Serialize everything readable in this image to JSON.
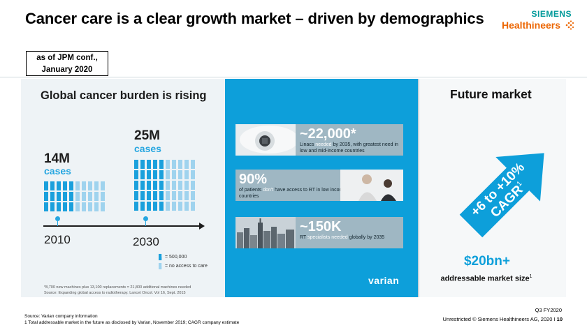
{
  "header": {
    "title": "Cancer care is a clear growth market – driven by demographics",
    "logo_top": "SIEMENS",
    "logo_bottom": "Healthineers",
    "as_of_line1": "as of JPM conf.,",
    "as_of_line2": "January 2020"
  },
  "left": {
    "heading": "Global cancer burden is rising",
    "value_2010": "14M",
    "cases_2010": "cases",
    "value_2030": "25M",
    "cases_2030": "cases",
    "year_2010": "2010",
    "year_2030": "2030",
    "legend_filled": "= 500,000",
    "legend_light": "= no access to care",
    "footnote_line1": "*8,700 new machines plus 13,100 replacements = 21,800 additional machines needed",
    "footnote_line2": "Source: Expanding global access to radiotherapy. Lancet Oncol. Vol 16, Sept. 2015",
    "icons_2010": {
      "filled": 13,
      "light": 15,
      "total": 28
    },
    "icons_2030": {
      "filled": 24,
      "light": 26,
      "total": 50
    }
  },
  "middle": {
    "card1_num": "~22,000*",
    "card1_a": "Linacs ",
    "card1_hl": "needed",
    "card1_b": " by 2035, with greatest need in low and mid-income countries",
    "card2_num": "90%",
    "card2_a": "of patients ",
    "card2_hl": "don't",
    "card2_b": " have access to RT in low income countries",
    "card3_num": "~150K",
    "card3_a": "RT ",
    "card3_hl": "specialists needed",
    "card3_b": " globally by 2035",
    "brand": "varian"
  },
  "right": {
    "heading": "Future market",
    "arrow_line1": "+6 to +10%",
    "arrow_line2": "CAGR",
    "arrow_sup": "1",
    "market_value": "$20bn+",
    "market_label": "addressable market size",
    "market_sup": "1"
  },
  "footer": {
    "source_line1": "Source: Varian company information",
    "source_line2": "1 Total addressable market in the future as disclosed by Varian, November 2019; CAGR company estimate",
    "quarter": "Q3 FY2020",
    "copyright": "Unrestricted © Siemens Healthineers AG, 2020 I ",
    "page": "10"
  },
  "colors": {
    "accent_blue": "#0d9fda",
    "brand_teal": "#009999",
    "brand_orange": "#ec6602"
  }
}
